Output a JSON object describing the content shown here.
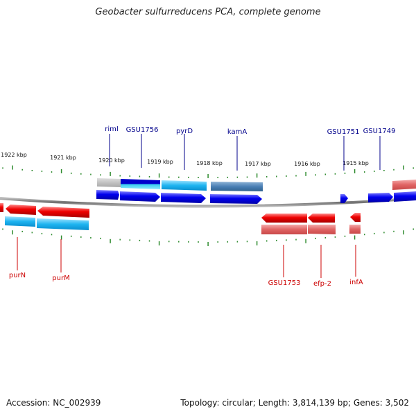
{
  "title": "Geobacter sulfurreducens PCA, complete genome",
  "footer": {
    "accession": "Accession: NC_002939",
    "summary": "Topology: circular; Length: 3,814,139 bp; Genes: 3,502"
  },
  "colors": {
    "forward_label": "#00008b",
    "reverse_label": "#cc0000",
    "tick": "#2e8b2e",
    "backbone": "#808080",
    "forward_cds": "#0000ee",
    "forward_gene": "#1e90ff",
    "reverse_cds": "#ee0000",
    "reverse_gene": "#e06060"
  },
  "scale_ticks": [
    {
      "kbp": 1922,
      "label": "1922 kbp"
    },
    {
      "kbp": 1921,
      "label": "1921 kbp"
    },
    {
      "kbp": 1920,
      "label": "1920 kbp"
    },
    {
      "kbp": 1919,
      "label": "1919 kbp"
    },
    {
      "kbp": 1918,
      "label": "1918 kbp"
    },
    {
      "kbp": 1917,
      "label": "1917 kbp"
    },
    {
      "kbp": 1916,
      "label": "1916 kbp"
    },
    {
      "kbp": 1915,
      "label": "1915 kbp"
    }
  ],
  "forward_genes": [
    {
      "label": "rimI"
    },
    {
      "label": "GSU1756"
    },
    {
      "label": "pyrD"
    },
    {
      "label": "kamA"
    },
    {
      "label": "GSU1751"
    },
    {
      "label": "GSU1749"
    }
  ],
  "reverse_genes": [
    {
      "label": "purN"
    },
    {
      "label": "purM"
    },
    {
      "label": "GSU1753"
    },
    {
      "label": "efp-2"
    },
    {
      "label": "infA"
    }
  ]
}
